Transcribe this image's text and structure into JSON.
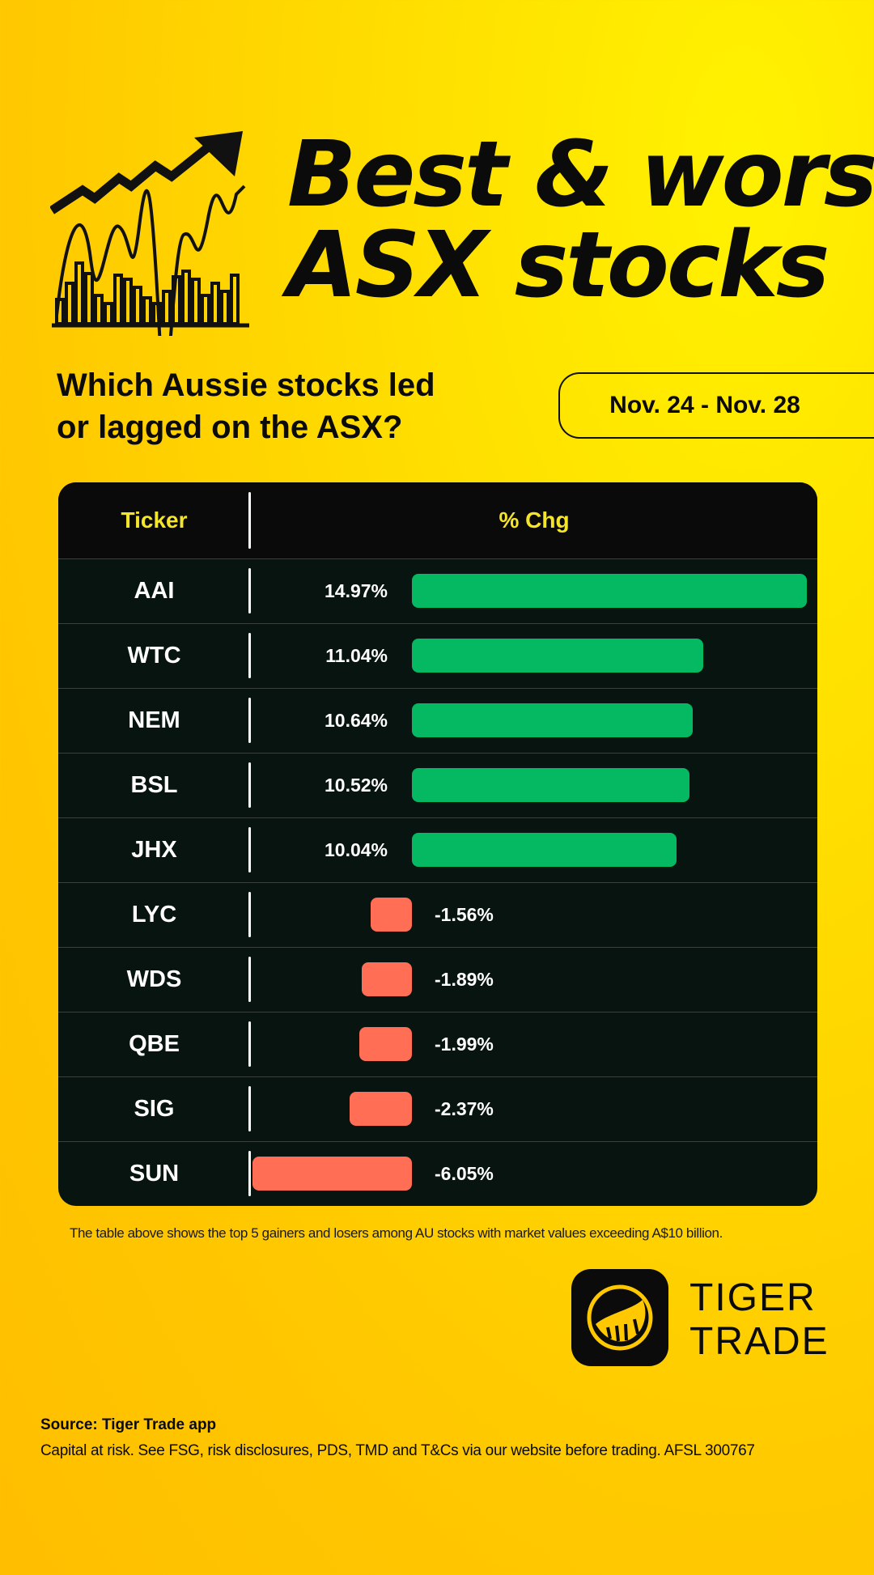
{
  "header": {
    "title_line1": "Best & worst",
    "title_line2": "ASX stocks",
    "subtitle_line1": "Which Aussie stocks led",
    "subtitle_line2": "or lagged on the ASX?",
    "date_range": "Nov. 24 - Nov. 28"
  },
  "colors": {
    "background": "#ffc800",
    "gain": "#05b862",
    "loss": "#ff6e55",
    "header_text": "#f5e52a",
    "table_bg": "#07140f"
  },
  "chart_data": {
    "type": "bar",
    "columns": [
      "Ticker",
      "% Chg"
    ],
    "categories": [
      "AAI",
      "WTC",
      "NEM",
      "BSL",
      "JHX",
      "LYC",
      "WDS",
      "QBE",
      "SIG",
      "SUN"
    ],
    "values": [
      14.97,
      11.04,
      10.64,
      10.52,
      10.04,
      -1.56,
      -1.89,
      -1.99,
      -2.37,
      -6.05
    ],
    "labels": [
      "14.97%",
      "11.04%",
      "10.64%",
      "10.52%",
      "10.04%",
      "-1.56%",
      "-1.89%",
      "-1.99%",
      "-2.37%",
      "-6.05%"
    ]
  },
  "footer": {
    "note": "The table above shows the top 5 gainers and losers among AU stocks with market values exceeding A$10 billion.",
    "brand_line1": "TIGER",
    "brand_line2": "TRADE",
    "brand_icon": "tiger-trade-logo-icon",
    "source": "Source: Tiger Trade app",
    "disclaimer": "Capital at risk. See FSG, risk disclosures, PDS, TMD and T&Cs via our website before trading. AFSL 300767"
  }
}
